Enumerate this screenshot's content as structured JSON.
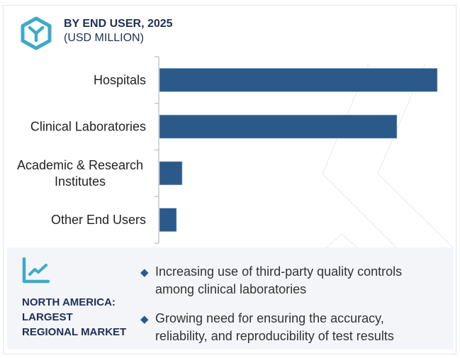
{
  "header": {
    "icon": "hexagon-y-icon",
    "title": "BY END USER, 2025",
    "subtitle": "(USD MILLION)"
  },
  "colors": {
    "bar": "#2b5a8a",
    "accent": "#3fa9c9",
    "title": "#1f2f57",
    "panel_bg": "#f3f5f9"
  },
  "chart_data": {
    "type": "bar",
    "orientation": "horizontal",
    "title": "BY END USER, 2025",
    "subtitle": "(USD MILLION)",
    "xlabel": "",
    "ylabel": "",
    "categories": [
      "Hospitals",
      "Clinical Laboratories",
      "Academic & Research Institutes",
      "Other End Users"
    ],
    "category_lines": [
      [
        "Hospitals"
      ],
      [
        "Clinical Laboratories"
      ],
      [
        "Academic & Research",
        "Institutes"
      ],
      [
        "Other End Users"
      ]
    ],
    "values": [
      392,
      335,
      32,
      24
    ],
    "value_note": "relative magnitudes; no axis values shown",
    "xlim": [
      0,
      400
    ],
    "grid": false,
    "legend": "none"
  },
  "panel": {
    "icon": "trend-line-chart-icon",
    "region_lines": [
      "NORTH AMERICA:",
      "LARGEST",
      "REGIONAL MARKET"
    ],
    "bullets": [
      {
        "icon": "diamond-bullet-icon",
        "text": "Increasing use of third-party quality controls among clinical laboratories"
      },
      {
        "icon": "diamond-bullet-icon",
        "text": "Growing need for ensuring the accuracy, reliability, and reproducibility of test results"
      }
    ]
  }
}
